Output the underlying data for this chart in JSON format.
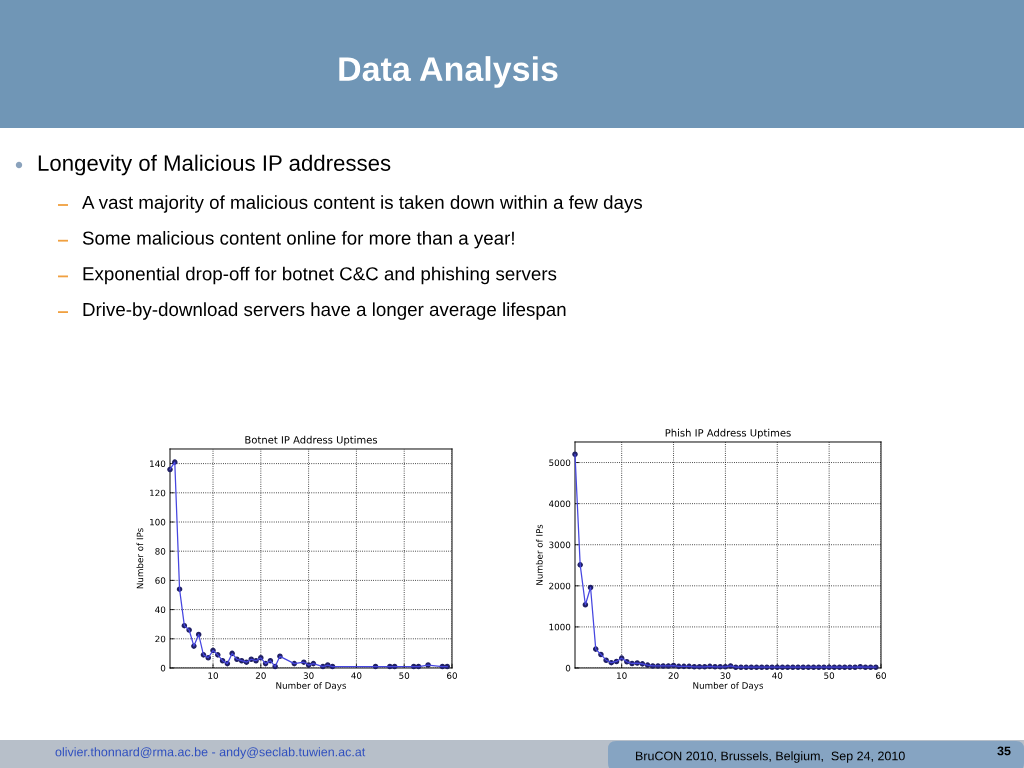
{
  "chart_data": [
    {
      "type": "other",
      "title": "Data Analysis",
      "subtitle": "Longevity of Malicious IP addresses",
      "annotations": [
        "A vast majority of malicious content is taken down within a few days",
        "Some malicious content online for more than a year!",
        "Exponential drop-off for botnet C&C and phishing servers",
        "Drive-by-download servers have a longer average lifespan"
      ]
    },
    {
      "type": "line",
      "title": "Botnet IP Address Uptimes",
      "xlabel": "Number of Days",
      "ylabel": "Number of IPs",
      "x": [
        1,
        2,
        3,
        4,
        5,
        6,
        7,
        8,
        9,
        10,
        11,
        12,
        13,
        14,
        15,
        16,
        17,
        18,
        19,
        20,
        21,
        22,
        23,
        24,
        27,
        29,
        30,
        31,
        33,
        34,
        35,
        44,
        47,
        48,
        52,
        53,
        55,
        58,
        59
      ],
      "series": [
        {
          "color": "#4646e0",
          "values": [
            136,
            141,
            54,
            29,
            26,
            15,
            23,
            9,
            7,
            12,
            9,
            5,
            3,
            10,
            6,
            5,
            4,
            6,
            5,
            7,
            3,
            5,
            1,
            8,
            3,
            4,
            2,
            3,
            1,
            2,
            1,
            1,
            1,
            1,
            1,
            1,
            2,
            1,
            1
          ]
        }
      ],
      "xlim": [
        1,
        60
      ],
      "xticks": [
        10,
        20,
        30,
        40,
        50,
        60
      ],
      "ylim": [
        0,
        150
      ],
      "yticks": [
        0,
        20,
        40,
        60,
        80,
        100,
        120,
        140
      ],
      "grid": true,
      "marker": "circle",
      "line_style": "solid"
    },
    {
      "type": "line",
      "title": "Phish IP Address Uptimes",
      "xlabel": "Number of Days",
      "ylabel": "Number of IPs",
      "x": [
        1,
        2,
        3,
        4,
        5,
        6,
        7,
        8,
        9,
        10,
        11,
        12,
        13,
        14,
        15,
        16,
        17,
        18,
        19,
        20,
        21,
        22,
        23,
        24,
        25,
        26,
        27,
        28,
        29,
        30,
        31,
        32,
        33,
        34,
        35,
        36,
        37,
        38,
        39,
        40,
        41,
        42,
        43,
        44,
        45,
        46,
        47,
        48,
        49,
        50,
        51,
        52,
        53,
        54,
        55,
        56,
        57,
        58,
        59
      ],
      "series": [
        {
          "color": "#4646e0",
          "values": [
            5200,
            2510,
            1540,
            1960,
            460,
            330,
            190,
            130,
            160,
            240,
            150,
            110,
            120,
            100,
            70,
            50,
            50,
            50,
            50,
            60,
            40,
            40,
            40,
            30,
            30,
            30,
            40,
            30,
            30,
            30,
            50,
            20,
            20,
            20,
            20,
            20,
            20,
            20,
            20,
            20,
            20,
            20,
            20,
            20,
            20,
            20,
            20,
            20,
            20,
            20,
            20,
            20,
            20,
            20,
            20,
            30,
            20,
            20,
            20
          ]
        }
      ],
      "xlim": [
        1,
        60
      ],
      "xticks": [
        10,
        20,
        30,
        40,
        50,
        60
      ],
      "ylim": [
        0,
        5500
      ],
      "yticks": [
        0,
        1000,
        2000,
        3000,
        4000,
        5000
      ],
      "grid": true,
      "marker": "circle",
      "line_style": "solid"
    },
    {
      "type": "other",
      "annotations": [
        "olivier.thonnard@rma.ac.be - andy@seclab.tuwien.ac.at",
        "BruCON 2010, Brussels, Belgium,  Sep 24, 2010",
        "35"
      ]
    }
  ]
}
